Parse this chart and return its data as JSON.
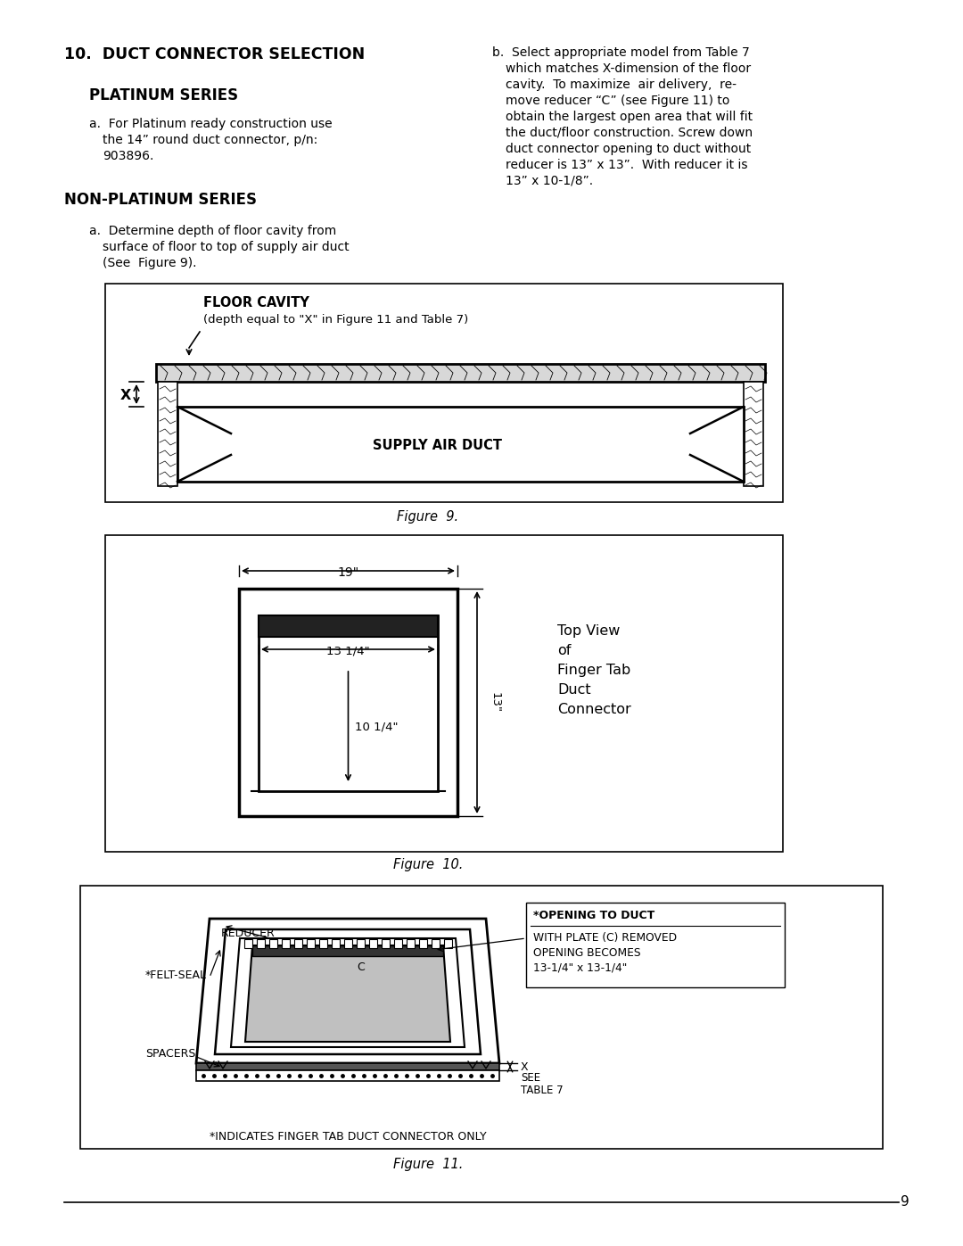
{
  "page_bg": "#ffffff",
  "text_color": "#000000",
  "section_title": "10.  DUCT CONNECTOR SELECTION",
  "platinum_title": "PLATINUM SERIES",
  "non_platinum_title": "NON-PLATINUM SERIES",
  "figure9_caption": "Figure  9.",
  "figure10_caption": "Figure  10.",
  "figure11_caption": "Figure  11.",
  "page_number": "9"
}
